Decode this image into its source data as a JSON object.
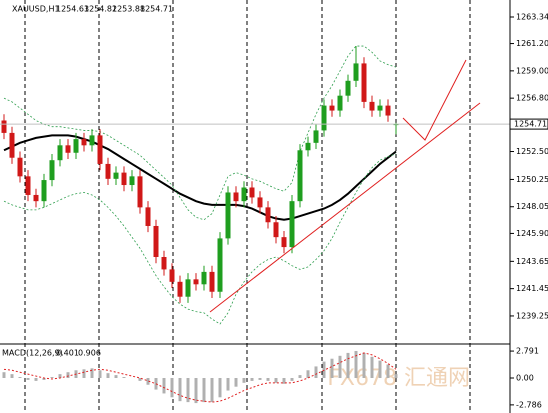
{
  "chart_data": [
    {
      "type": "candlestick",
      "title": "XAUUSD,H1",
      "open": [
        1255.0,
        1254.0,
        1252.0,
        1250.5,
        1249.0,
        1248.5,
        1250.2,
        1251.8,
        1253.0,
        1252.4,
        1253.5,
        1253.0,
        1253.8,
        1251.5,
        1250.3,
        1250.8,
        1249.8,
        1250.5,
        1248.0,
        1246.5,
        1244.0,
        1243.0,
        1242.0,
        1240.8,
        1242.2,
        1241.8,
        1242.8,
        1241.2,
        1245.5,
        1249.2,
        1248.5,
        1249.6,
        1248.8,
        1248.0,
        1246.8,
        1245.6,
        1244.8,
        1248.5,
        1252.6,
        1253.2,
        1254.2,
        1256.2,
        1255.8,
        1257.0,
        1258.2,
        1259.6,
        1256.5,
        1255.8,
        1256.2,
        1254.63
      ],
      "high": [
        1255.5,
        1254.5,
        1252.5,
        1251.0,
        1249.5,
        1250.7,
        1252.3,
        1253.5,
        1253.5,
        1254.0,
        1254.0,
        1254.3,
        1254.3,
        1252.0,
        1251.3,
        1251.3,
        1251.0,
        1251.0,
        1248.5,
        1247.0,
        1244.5,
        1243.5,
        1242.5,
        1242.7,
        1242.7,
        1243.3,
        1243.3,
        1246.0,
        1249.7,
        1249.7,
        1250.1,
        1250.1,
        1249.3,
        1248.5,
        1247.3,
        1246.1,
        1249.0,
        1253.1,
        1253.7,
        1254.7,
        1256.7,
        1256.7,
        1257.5,
        1258.7,
        1261.0,
        1260.1,
        1257.0,
        1256.7,
        1256.7,
        1254.82
      ],
      "low": [
        1253.5,
        1251.5,
        1250.0,
        1248.5,
        1248.0,
        1248.0,
        1249.7,
        1251.3,
        1251.9,
        1251.9,
        1252.5,
        1252.5,
        1251.0,
        1249.8,
        1249.8,
        1249.3,
        1249.3,
        1247.5,
        1246.0,
        1243.5,
        1242.5,
        1241.5,
        1240.3,
        1240.3,
        1241.3,
        1241.3,
        1240.7,
        1240.7,
        1245.0,
        1248.0,
        1248.0,
        1248.3,
        1247.5,
        1246.3,
        1245.1,
        1244.3,
        1244.3,
        1248.0,
        1252.1,
        1252.7,
        1253.7,
        1255.3,
        1255.3,
        1256.5,
        1257.7,
        1256.0,
        1255.3,
        1255.3,
        1254.9,
        1253.88
      ],
      "close": [
        1254.0,
        1252.0,
        1250.5,
        1249.0,
        1248.5,
        1250.2,
        1251.8,
        1253.0,
        1252.4,
        1253.5,
        1253.0,
        1253.8,
        1251.5,
        1250.3,
        1250.8,
        1249.8,
        1250.5,
        1248.0,
        1246.5,
        1244.0,
        1243.0,
        1242.0,
        1240.8,
        1242.2,
        1241.8,
        1242.8,
        1241.2,
        1245.5,
        1249.2,
        1248.5,
        1249.6,
        1248.8,
        1248.0,
        1246.8,
        1245.6,
        1244.8,
        1248.5,
        1252.6,
        1253.2,
        1254.2,
        1256.2,
        1255.8,
        1257.0,
        1258.2,
        1259.6,
        1256.5,
        1255.8,
        1256.2,
        1255.4,
        1254.71
      ],
      "up_color": "#1f9e1f",
      "down_color": "#d01818",
      "series": [
        {
          "color": "#000000",
          "style": "solid",
          "values": [
            1252.6,
            1252.9,
            1253.2,
            1253.4,
            1253.6,
            1253.7,
            1253.8,
            1253.8,
            1253.8,
            1253.7,
            1253.5,
            1253.3,
            1253.0,
            1252.7,
            1252.3,
            1251.9,
            1251.5,
            1251.1,
            1250.7,
            1250.3,
            1249.9,
            1249.5,
            1249.1,
            1248.8,
            1248.5,
            1248.3,
            1248.2,
            1248.2,
            1248.2,
            1248.2,
            1248.1,
            1247.9,
            1247.6,
            1247.3,
            1247.1,
            1247.0,
            1247.1,
            1247.3,
            1247.5,
            1247.7,
            1247.9,
            1248.2,
            1248.6,
            1249.1,
            1249.7,
            1250.3,
            1250.9,
            1251.5,
            1252.0,
            1252.5
          ]
        },
        {
          "color": "#2e9e4e",
          "style": "dashed",
          "values": [
            1256.8,
            1256.5,
            1256.0,
            1255.5,
            1255.0,
            1254.7,
            1254.5,
            1254.5,
            1254.4,
            1254.3,
            1254.2,
            1254.2,
            1254.1,
            1253.8,
            1253.4,
            1253.0,
            1252.6,
            1252.2,
            1251.6,
            1251.0,
            1250.4,
            1249.8,
            1248.8,
            1247.8,
            1247.2,
            1247.0,
            1247.5,
            1249.0,
            1250.5,
            1250.8,
            1250.6,
            1250.3,
            1250.1,
            1249.8,
            1249.5,
            1249.3,
            1250.0,
            1252.5,
            1254.0,
            1255.5,
            1256.8,
            1257.8,
            1259.0,
            1260.2,
            1261.0,
            1261.0,
            1260.5,
            1259.8,
            1259.5,
            1259.3
          ]
        },
        {
          "color": "#2e9e4e",
          "style": "dashed",
          "values": [
            1248.5,
            1248.2,
            1248.0,
            1247.8,
            1247.8,
            1248.0,
            1248.3,
            1248.6,
            1248.9,
            1249.1,
            1249.2,
            1249.0,
            1248.6,
            1248.0,
            1247.3,
            1246.5,
            1245.6,
            1244.7,
            1243.6,
            1242.5,
            1241.6,
            1240.8,
            1240.2,
            1239.8,
            1239.6,
            1239.5,
            1239.0,
            1238.6,
            1239.5,
            1241.0,
            1242.0,
            1242.8,
            1243.4,
            1243.8,
            1244.0,
            1243.7,
            1243.3,
            1243.0,
            1243.2,
            1243.8,
            1244.5,
            1245.5,
            1246.8,
            1248.0,
            1249.2,
            1250.3,
            1251.2,
            1251.8,
            1252.1,
            1252.3
          ]
        }
      ],
      "ylim": [
        1237.07,
        1264.71
      ],
      "yticks": [
        1263.34,
        {
          "value": 1261.2,
          "label": "1261.20"
        },
        {
          "value": 1259,
          "label": "1259.00"
        },
        {
          "value": 1256.8,
          "label": "1256.80"
        },
        {
          "value": 1252.5,
          "label": "1252.50"
        },
        1250.25,
        1248.05,
        {
          "value": 1245.9,
          "label": "1245.90"
        },
        1243.65,
        1241.45,
        1239.25
      ],
      "watermark": "FX678 汇通网"
    },
    {
      "type": "macd",
      "title": "MACD(12,26,9)",
      "series": [
        {
          "color": "#b0b0b0",
          "style": "histogram",
          "values": [
            0.6,
            0.4,
            0.1,
            -0.2,
            -0.3,
            -0.2,
            0.1,
            0.4,
            0.6,
            0.8,
            0.9,
            1.0,
            0.8,
            0.5,
            0.3,
            0.1,
            0.0,
            -0.3,
            -0.7,
            -1.2,
            -1.6,
            -2.0,
            -2.4,
            -2.5,
            -2.6,
            -2.5,
            -2.5,
            -2.0,
            -1.3,
            -0.9,
            -0.5,
            -0.3,
            -0.2,
            -0.3,
            -0.5,
            -0.6,
            -0.3,
            0.3,
            0.8,
            1.2,
            1.7,
            2.0,
            2.3,
            2.6,
            2.8,
            2.6,
            2.2,
            1.8,
            1.4,
            0.401
          ]
        },
        {
          "color": "#e02020",
          "style": "dotted",
          "values": [
            0.9,
            0.8,
            0.6,
            0.4,
            0.2,
            0.0,
            -0.1,
            0.0,
            0.2,
            0.4,
            0.6,
            0.8,
            0.9,
            0.8,
            0.6,
            0.4,
            0.2,
            0.0,
            -0.3,
            -0.6,
            -1.0,
            -1.4,
            -1.8,
            -2.1,
            -2.3,
            -2.4,
            -2.5,
            -2.4,
            -2.1,
            -1.7,
            -1.3,
            -1.0,
            -0.7,
            -0.5,
            -0.5,
            -0.5,
            -0.5,
            -0.3,
            0.0,
            0.4,
            0.8,
            1.2,
            1.6,
            2.0,
            2.3,
            2.6,
            2.4,
            2.0,
            1.5,
            0.906
          ]
        }
      ],
      "ylim": [
        -3.628,
        3.317
      ],
      "yticks": [
        2.791,
        {
          "value": 0,
          "label": "0.00"
        },
        -2.786
      ]
    }
  ]
}
